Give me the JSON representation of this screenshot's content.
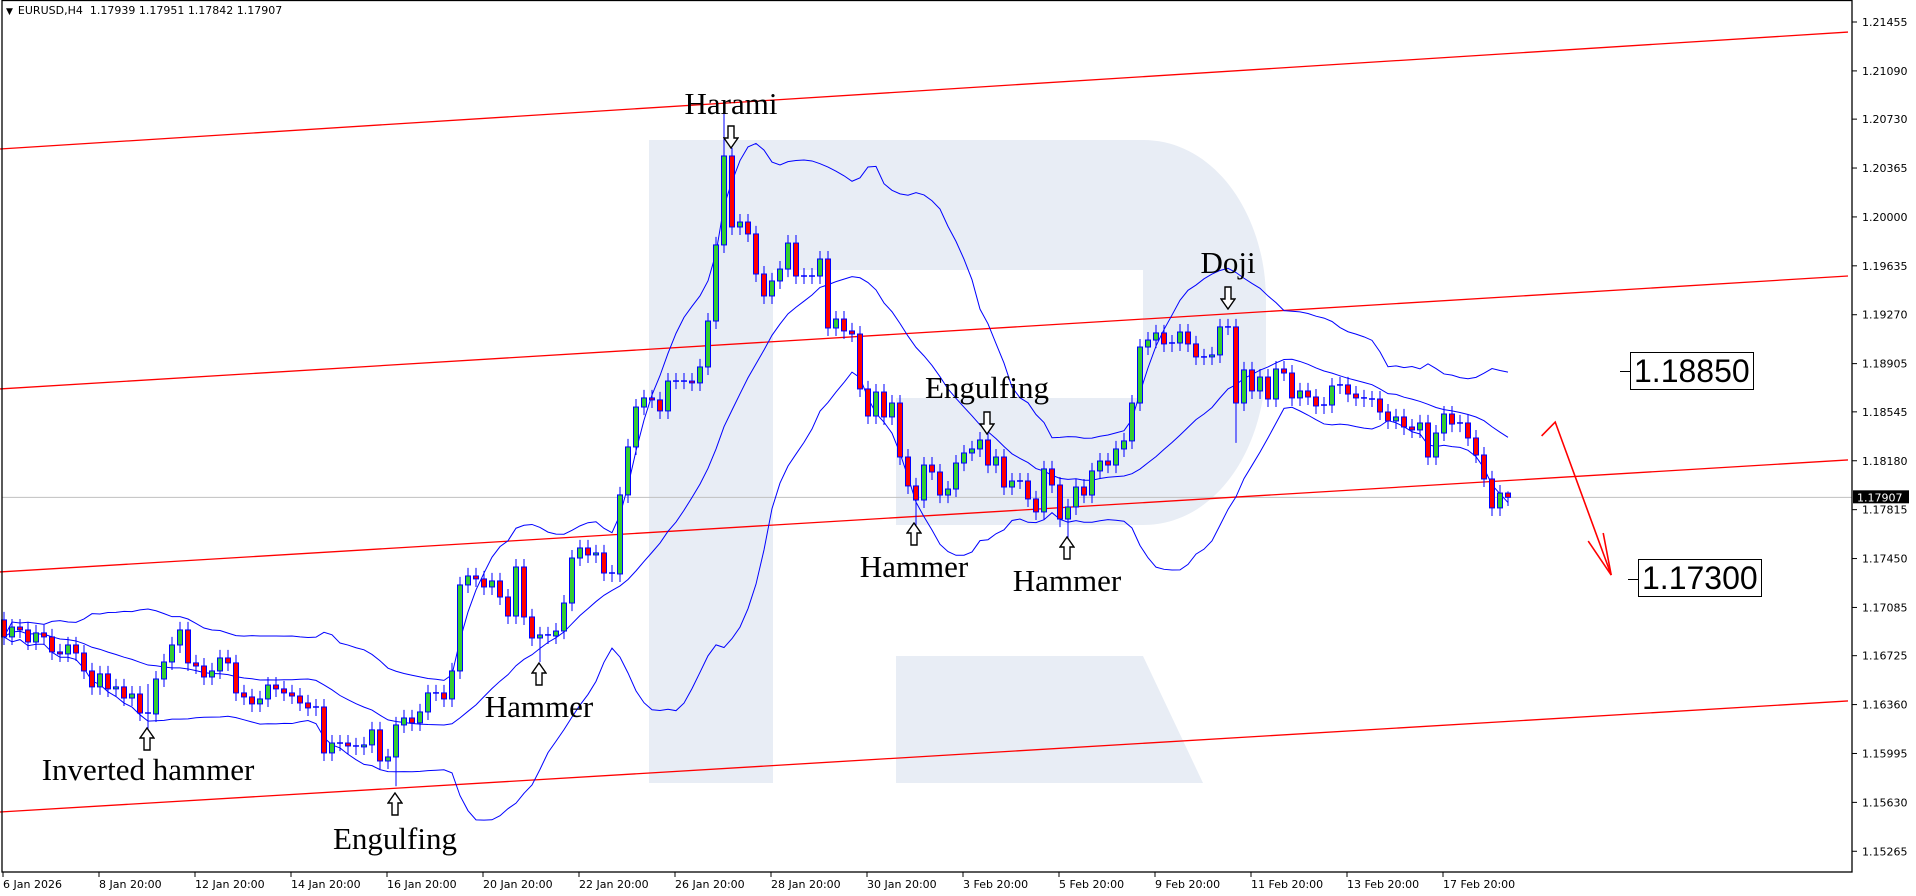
{
  "header": {
    "symbol": "EURUSD,H4",
    "ohlc": "1.17939 1.17951 1.17842 1.17907",
    "menu_icon": "triangle-down-icon"
  },
  "price_axis": {
    "labels": [
      "1.21455",
      "1.21090",
      "1.20730",
      "1.20365",
      "1.20000",
      "1.19635",
      "1.19270",
      "1.18905",
      "1.18545",
      "1.18180",
      "1.17815",
      "1.17450",
      "1.17085",
      "1.16725",
      "1.16360",
      "1.15995",
      "1.15630",
      "1.15265"
    ],
    "current_price": "1.17907"
  },
  "time_axis": {
    "labels": [
      {
        "bar": 0,
        "text": "6 Jan 2026"
      },
      {
        "bar": 12,
        "text": "8 Jan 20:00"
      },
      {
        "bar": 24,
        "text": "12 Jan 20:00"
      },
      {
        "bar": 36,
        "text": "14 Jan 20:00"
      },
      {
        "bar": 48,
        "text": "16 Jan 20:00"
      },
      {
        "bar": 60,
        "text": "20 Jan 20:00"
      },
      {
        "bar": 72,
        "text": "22 Jan 20:00"
      },
      {
        "bar": 84,
        "text": "26 Jan 20:00"
      },
      {
        "bar": 96,
        "text": "28 Jan 20:00"
      },
      {
        "bar": 108,
        "text": "30 Jan 20:00"
      },
      {
        "bar": 120,
        "text": "3 Feb 20:00"
      },
      {
        "bar": 132,
        "text": "5 Feb 20:00"
      },
      {
        "bar": 144,
        "text": "9 Feb 20:00"
      },
      {
        "bar": 156,
        "text": "11 Feb 20:00"
      },
      {
        "bar": 168,
        "text": "13 Feb 20:00"
      },
      {
        "bar": 180,
        "text": "17 Feb 20:00"
      }
    ]
  },
  "chart_data": {
    "type": "candlestick",
    "symbol": "EURUSD",
    "timeframe": "H4",
    "ylim": [
      1.151,
      1.216
    ],
    "first_open": 1.16992,
    "close": [
      1.16865,
      1.16939,
      1.16917,
      1.16827,
      1.16895,
      1.16865,
      1.16753,
      1.16738,
      1.16805,
      1.16745,
      1.16611,
      1.16492,
      1.16589,
      1.16477,
      1.16492,
      1.16409,
      1.16439,
      1.16297,
      1.1629,
      1.16551,
      1.16678,
      1.16805,
      1.16917,
      1.16671,
      1.16648,
      1.16566,
      1.16611,
      1.16708,
      1.16671,
      1.16447,
      1.16417,
      1.16365,
      1.16402,
      1.16506,
      1.16477,
      1.16447,
      1.16424,
      1.16372,
      1.16335,
      1.16342,
      1.15999,
      1.16073,
      1.16073,
      1.16051,
      1.16044,
      1.16059,
      1.16171,
      1.15939,
      1.15969,
      1.16208,
      1.1626,
      1.16223,
      1.16305,
      1.16447,
      1.16447,
      1.16402,
      1.16611,
      1.17253,
      1.1732,
      1.17298,
      1.17238,
      1.17283,
      1.17163,
      1.17021,
      1.17387,
      1.17014,
      1.16857,
      1.1688,
      1.16872,
      1.16909,
      1.17118,
      1.17454,
      1.17529,
      1.17477,
      1.17492,
      1.17342,
      1.17335,
      1.17925,
      1.18283,
      1.18581,
      1.18649,
      1.18634,
      1.18552,
      1.18775,
      1.18775,
      1.18775,
      1.18761,
      1.1888,
      1.19223,
      1.19791,
      1.20455,
      1.19925,
      1.19962,
      1.19873,
      1.19574,
      1.1941,
      1.19522,
      1.19611,
      1.19805,
      1.19559,
      1.19559,
      1.19559,
      1.19686,
      1.19171,
      1.19238,
      1.19149,
      1.19126,
      1.18716,
      1.18514,
      1.18693,
      1.18507,
      1.18611,
      1.18208,
      1.17992,
      1.17887,
      1.18148,
      1.18096,
      1.17924,
      1.17969,
      1.18163,
      1.18238,
      1.18268,
      1.18335,
      1.18148,
      1.18208,
      1.17984,
      1.18029,
      1.18029,
      1.17895,
      1.17798,
      1.18119,
      1.17999,
      1.17745,
      1.17835,
      1.17984,
      1.17924,
      1.18104,
      1.18178,
      1.18148,
      1.18268,
      1.18328,
      1.18611,
      1.19029,
      1.19081,
      1.19134,
      1.19052,
      1.19059,
      1.19141,
      1.19052,
      1.18955,
      1.18955,
      1.1897,
      1.19179,
      1.19179,
      1.18611,
      1.18858,
      1.18701,
      1.18805,
      1.18641,
      1.18865,
      1.18835,
      1.18649,
      1.18701,
      1.18656,
      1.18589,
      1.18596,
      1.18738,
      1.18746,
      1.18678,
      1.18649,
      1.18641,
      1.18641,
      1.18544,
      1.18477,
      1.18507,
      1.18432,
      1.1841,
      1.18462,
      1.18208,
      1.18387,
      1.18529,
      1.18454,
      1.18462,
      1.1835,
      1.18223,
      1.18044,
      1.17828,
      1.17939,
      1.17907
    ],
    "last_bar": {
      "open": 1.17939,
      "high": 1.17951,
      "low": 1.17842,
      "close": 1.17907
    },
    "wick_extremes": {
      "18": {
        "high": 1.16514,
        "low": 1.16156
      },
      "49": {
        "low": 1.1575
      },
      "67": {
        "low": 1.16678
      },
      "90": {
        "high": 1.2079
      },
      "114": {
        "low": 1.17604
      },
      "133": {
        "low": 1.17508
      },
      "154": {
        "low": 1.18313
      }
    },
    "indicator": "Bollinger Bands",
    "channel_lines": [
      {
        "from": {
          "bar": -0.5,
          "price": 1.20507
        },
        "to": {
          "bar": 230.5,
          "price": 1.2138
        }
      },
      {
        "from": {
          "bar": -0.5,
          "price": 1.18716
        },
        "to": {
          "bar": 230.5,
          "price": 1.19559
        }
      },
      {
        "from": {
          "bar": -0.5,
          "price": 1.1735
        },
        "to": {
          "bar": 230.5,
          "price": 1.18186
        }
      },
      {
        "from": {
          "bar": -0.5,
          "price": 1.15558
        },
        "to": {
          "bar": 230.5,
          "price": 1.16387
        }
      }
    ],
    "forecast_arrow": [
      {
        "bar": 192.2,
        "price": 1.18365
      },
      {
        "bar": 193.9,
        "price": 1.18469
      },
      {
        "bar": 200.9,
        "price": 1.17327
      }
    ],
    "levels": [
      {
        "label": "1.18850"
      },
      {
        "label": "1.17300"
      }
    ],
    "annotations": [
      {
        "text": "Harami",
        "bar": 91,
        "arrow": "down"
      },
      {
        "text": "Doji",
        "bar": 153,
        "arrow": "down"
      },
      {
        "text": "Engulfing",
        "bar": 123,
        "arrow": "down"
      },
      {
        "text": "Hammer",
        "bar": 114,
        "arrow": "up"
      },
      {
        "text": "Hammer",
        "bar": 133,
        "arrow": "up"
      },
      {
        "text": "Hammer",
        "bar": 67,
        "arrow": "up"
      },
      {
        "text": "Inverted hammer",
        "bar": 18,
        "arrow": "up"
      },
      {
        "text": "Engulfing",
        "bar": 49,
        "arrow": "up"
      }
    ],
    "colors": {
      "bull": "#32cd32",
      "bear": "#ff0000",
      "outline": "#0000ff",
      "bands": "#0000ff",
      "channel": "#ff0000",
      "price_line": "#c0c0c0",
      "watermark": "#e8edf5"
    }
  }
}
